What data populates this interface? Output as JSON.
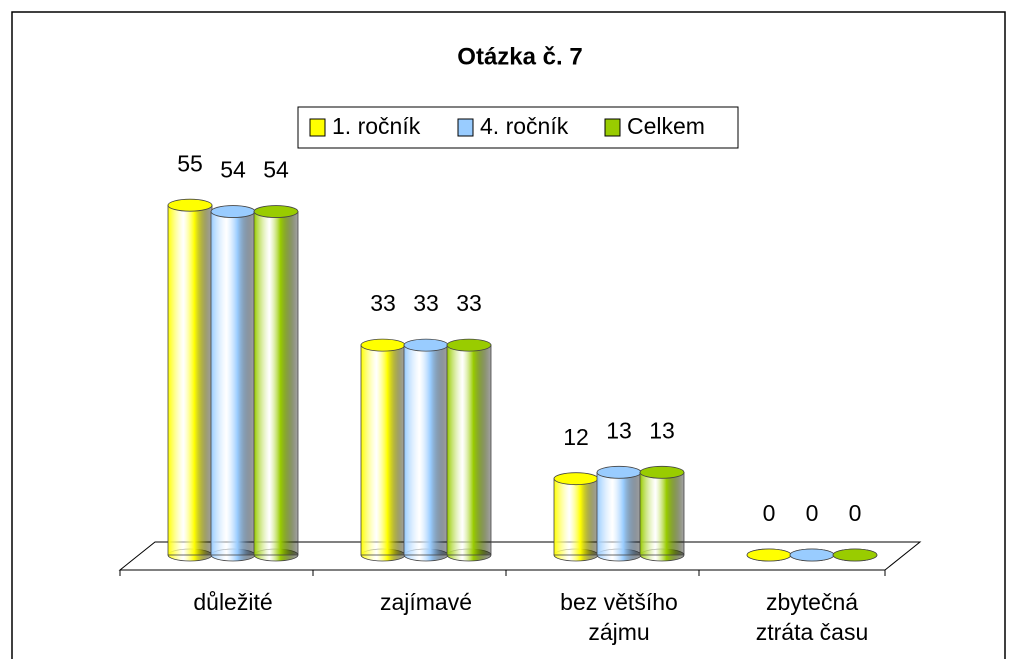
{
  "chart_data": {
    "type": "bar3d",
    "title": "Otázka č. 7",
    "categories": [
      "důležité",
      "zajímavé",
      "bez většího zájmu",
      "zbytečná ztráta času"
    ],
    "series": [
      {
        "name": "1. ročník",
        "color": "#ffff00",
        "values": [
          55,
          33,
          12,
          0
        ]
      },
      {
        "name": "4. ročník",
        "color": "#99ccff",
        "values": [
          54,
          33,
          13,
          0
        ]
      },
      {
        "name": "Celkem",
        "color": "#99cc00",
        "values": [
          54,
          33,
          13,
          0
        ]
      }
    ],
    "legend": "top"
  }
}
